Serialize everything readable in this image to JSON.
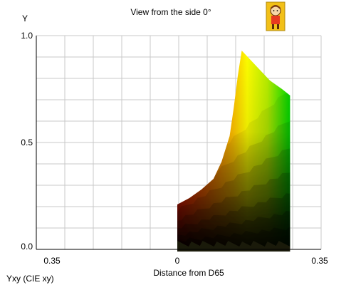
{
  "chart_data": {
    "type": "area",
    "title": "View from the side 0°",
    "xlabel": "Distance from D65",
    "ylabel": "Y",
    "footer_label": "Yxy (CIE xy)",
    "xlim": [
      -0.35,
      0.35
    ],
    "ylim": [
      0.0,
      1.0
    ],
    "x_tick_labels": [
      "0.35",
      "0",
      "0.35"
    ],
    "x_tick_values": [
      -0.35,
      0,
      0.35
    ],
    "y_tick_labels": [
      "0.0",
      "0.5",
      "1.0"
    ],
    "y_tick_values": [
      0.0,
      0.5,
      1.0
    ],
    "grid": true,
    "gamut_outline": {
      "x": [
        0.0,
        0.0,
        0.03,
        0.06,
        0.09,
        0.11,
        0.13,
        0.14,
        0.15,
        0.16,
        0.175,
        0.2,
        0.23,
        0.26,
        0.28,
        0.28
      ],
      "y": [
        0.0,
        0.21,
        0.24,
        0.28,
        0.33,
        0.41,
        0.53,
        0.66,
        0.81,
        0.93,
        0.9,
        0.85,
        0.79,
        0.75,
        0.72,
        0.0
      ]
    },
    "colors": {
      "red_edge": "#ff1a00",
      "yellow_peak": "#ffff00",
      "green_edge": "#00e000",
      "dark_base": "#1a1a0a",
      "grid": "#c8c8c8",
      "axis": "#000000"
    },
    "icon": "cartoon-character-icon"
  }
}
